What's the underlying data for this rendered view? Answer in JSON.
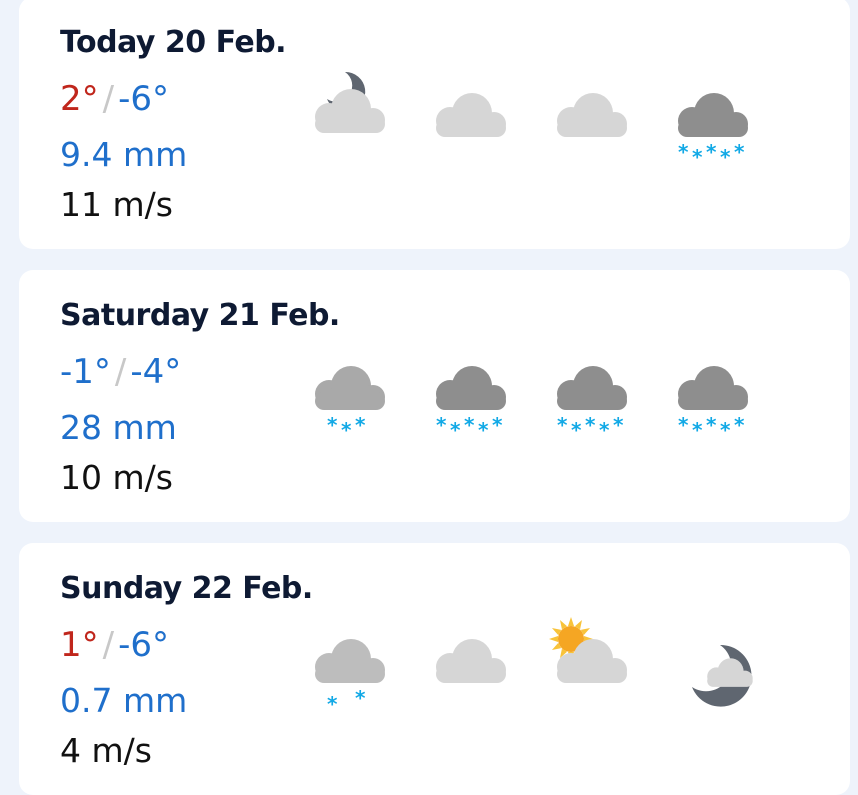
{
  "days": [
    {
      "title": "Today 20 Feb.",
      "high": "2°",
      "high_color": "warm",
      "low": "-6°",
      "precipitation": "9.4 mm",
      "wind": "11 m/s",
      "icons": [
        "partly-cloudy-night-icon",
        "cloudy-icon",
        "cloudy-icon",
        "heavy-snow-icon"
      ]
    },
    {
      "title": "Saturday 21 Feb.",
      "high": "-1°",
      "high_color": "cold",
      "low": "-4°",
      "precipitation": "28 mm",
      "wind": "10 m/s",
      "icons": [
        "snow-icon",
        "heavy-snow-icon",
        "heavy-snow-icon",
        "heavy-snow-icon"
      ]
    },
    {
      "title": "Sunday 22 Feb.",
      "high": "1°",
      "high_color": "warm",
      "low": "-6°",
      "precipitation": "0.7 mm",
      "wind": "4 m/s",
      "icons": [
        "light-snow-icon",
        "cloudy-icon",
        "partly-cloudy-day-icon",
        "fair-night-icon"
      ]
    }
  ],
  "separator": "/",
  "colors": {
    "warm": "#c0261c",
    "cold": "#1f6fcb",
    "snow": "#12a9e6",
    "cloud_light": "#d6d6d6",
    "cloud_dark": "#8e8e8e",
    "moon": "#5f6670",
    "sun": "#f5a623"
  }
}
